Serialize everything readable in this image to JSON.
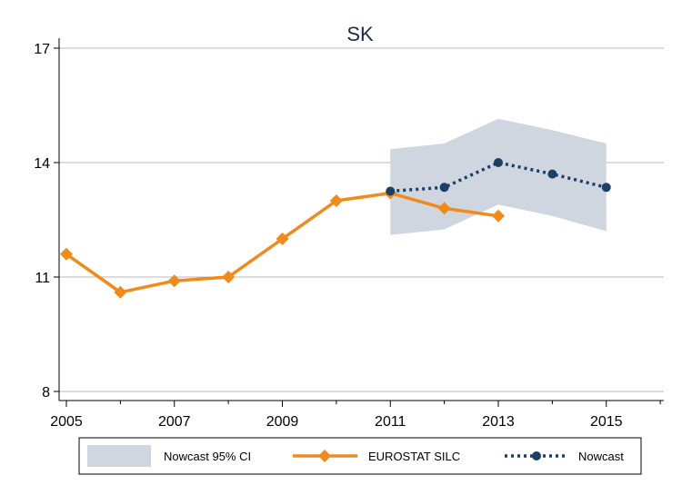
{
  "chart_data": {
    "type": "line",
    "title": "SK",
    "xlabel": "",
    "ylabel": "",
    "xlim": [
      2005,
      2016.2
    ],
    "ylim": [
      8,
      17.5
    ],
    "x_ticks": [
      2005,
      2007,
      2009,
      2011,
      2013,
      2015
    ],
    "y_ticks": [
      8,
      11,
      14,
      17
    ],
    "grid": "horizontal",
    "legend_position": "bottom",
    "colors": {
      "eurostat": "#f28a1a",
      "nowcast": "#1c3f66",
      "ci_band": "#cfd6e0",
      "grid": "#b8b8b8",
      "axis": "#000000"
    },
    "series": [
      {
        "name": "EUROSTAT SILC",
        "style": "solid-diamond",
        "x": [
          2005,
          2006,
          2007,
          2008,
          2009,
          2010,
          2011,
          2012,
          2013
        ],
        "values": [
          11.6,
          10.6,
          10.9,
          11.0,
          12.0,
          13.0,
          13.2,
          12.8,
          12.6
        ]
      },
      {
        "name": "Nowcast",
        "style": "dotted-circle",
        "x": [
          2011,
          2012,
          2013,
          2014,
          2015
        ],
        "values": [
          13.25,
          13.35,
          14.0,
          13.7,
          13.35
        ]
      },
      {
        "name": "Nowcast 95% CI",
        "style": "band",
        "x": [
          2011,
          2012,
          2013,
          2014,
          2015
        ],
        "lower": [
          12.1,
          12.25,
          12.9,
          12.6,
          12.2
        ],
        "upper": [
          14.35,
          14.5,
          15.15,
          14.85,
          14.5
        ]
      }
    ]
  }
}
